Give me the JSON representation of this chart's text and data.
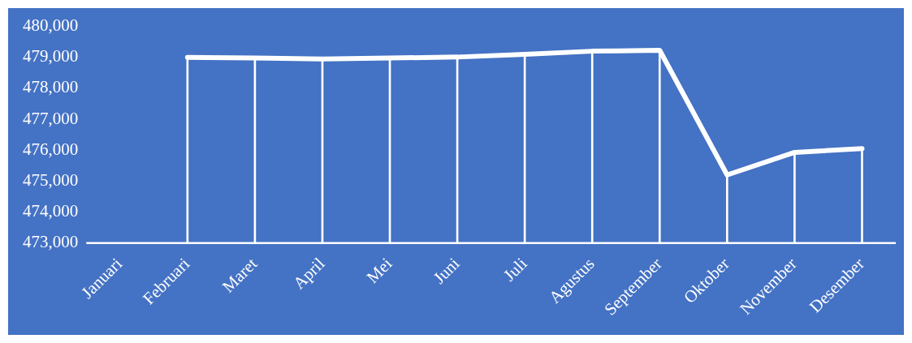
{
  "chart_data": {
    "type": "line",
    "categories": [
      "Januari",
      "Februari",
      "Maret",
      "April",
      "Mei",
      "Juni",
      "Juli",
      "Agustus",
      "September",
      "Oktober",
      "November",
      "Desember"
    ],
    "series": [
      {
        "color": "#ffffff",
        "values": [
          null,
          479000,
          478980,
          478950,
          478980,
          479010,
          479100,
          479200,
          479230,
          475200,
          475930,
          476050
        ]
      },
      {
        "type": "bar",
        "color": "#ffffff",
        "values": [
          null,
          479000,
          478980,
          478950,
          478980,
          479010,
          479100,
          479200,
          479230,
          475200,
          475930,
          476050
        ]
      }
    ],
    "ylim": [
      473000,
      480000
    ],
    "yticks": [
      {
        "value": 473000,
        "label": "473,000"
      },
      {
        "value": 474000,
        "label": "474,000"
      },
      {
        "value": 475000,
        "label": "475,000"
      },
      {
        "value": 476000,
        "label": "476,000"
      },
      {
        "value": 477000,
        "label": "477,000"
      },
      {
        "value": 478000,
        "label": "478,000"
      },
      {
        "value": 479000,
        "label": "479,000"
      },
      {
        "value": 480000,
        "label": "480,000"
      }
    ],
    "grid": false,
    "legend": false,
    "marker": "none",
    "line_style": "solid"
  }
}
